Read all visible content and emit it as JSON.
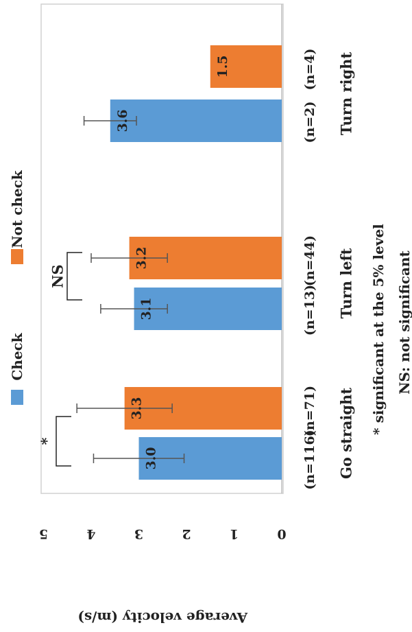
{
  "chart_data": {
    "type": "bar",
    "orientation": "horizontal",
    "categories": [
      "Go straight",
      "Turn left",
      "Turn right"
    ],
    "series": [
      {
        "name": "Check",
        "color": "#5B9BD5",
        "values": [
          3.0,
          3.1,
          3.6
        ],
        "value_labels": [
          "3.0",
          "3.1",
          "3.6"
        ],
        "error": [
          0.95,
          0.7,
          0.55
        ],
        "n_labels": [
          "(n=116)",
          "(n=13)",
          "(n=2)"
        ]
      },
      {
        "name": "Not check",
        "color": "#ED7D31",
        "values": [
          3.3,
          3.2,
          1.5
        ],
        "value_labels": [
          "3.3",
          "3.2",
          "1.5"
        ],
        "error": [
          1.0,
          0.8,
          null
        ],
        "n_labels": [
          "(n=71)",
          "(n=44)",
          "(n=4)"
        ]
      }
    ],
    "xlim": [
      0,
      5
    ],
    "ticks": [
      "0",
      "1",
      "2",
      "3",
      "4",
      "5"
    ],
    "axis_title": "Average velocity (m/s)",
    "significance": [
      {
        "category": "Go straight",
        "label": "*"
      },
      {
        "category": "Turn left",
        "label": "NS"
      }
    ],
    "notes": [
      "* significant at the 5% level",
      "NS: not significant"
    ],
    "legend": {
      "position": "top"
    }
  }
}
